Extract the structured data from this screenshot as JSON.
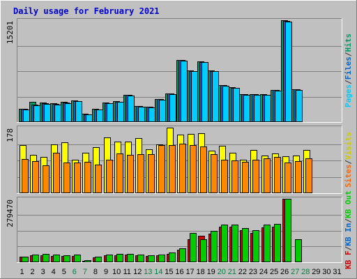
{
  "chart_data": {
    "type": "bar",
    "title": "Daily usage for February 2021",
    "days": [
      "1",
      "2",
      "3",
      "4",
      "5",
      "6",
      "7",
      "8",
      "9",
      "10",
      "11",
      "12",
      "13",
      "14",
      "15",
      "16",
      "17",
      "18",
      "19",
      "20",
      "21",
      "22",
      "23",
      "24",
      "25",
      "26",
      "27",
      "28",
      "29",
      "30",
      "31"
    ],
    "weekend_days": [
      "6",
      "7",
      "13",
      "14",
      "20",
      "21",
      "27",
      "28"
    ],
    "panels": [
      {
        "id": "hits-files-pages",
        "max_label": "15201",
        "max": 15201,
        "side_labels": [
          "Pages",
          "/",
          "Files",
          "/",
          "Hits"
        ],
        "side_colors": [
          "#00ccff",
          "#333333",
          "#0066cc",
          "#333333",
          "#009966"
        ],
        "series": [
          {
            "name": "Hits",
            "color": "#009966",
            "values": [
              2000,
              3000,
              2900,
              2800,
              3000,
              3250,
              1200,
              2000,
              2900,
              3100,
              4100,
              2400,
              2300,
              3450,
              4300,
              9300,
              7700,
              9050,
              7750,
              5550,
              5200,
              4200,
              4200,
              4150,
              4800,
              15200,
              4900,
              0,
              0,
              0,
              0
            ]
          },
          {
            "name": "Files",
            "color": "#0066cc",
            "values": [
              1950,
              2600,
              2800,
              2700,
              2900,
              3150,
              1150,
              1900,
              2850,
              3050,
              4050,
              2350,
              2250,
              3400,
              4250,
              9250,
              7650,
              9000,
              7650,
              5500,
              5150,
              4150,
              4150,
              4100,
              4750,
              15100,
              4850,
              0,
              0,
              0,
              0
            ]
          },
          {
            "name": "Pages",
            "color": "#00ccff",
            "values": [
              1900,
              2550,
              2750,
              2650,
              2850,
              3100,
              1100,
              1850,
              2800,
              3000,
              4000,
              2300,
              2200,
              3350,
              4200,
              9200,
              7600,
              8950,
              7600,
              5450,
              5100,
              4100,
              4100,
              4050,
              4700,
              15000,
              4800,
              0,
              0,
              0,
              0
            ]
          }
        ]
      },
      {
        "id": "visits-sites",
        "max_label": "178",
        "max": 178,
        "side_labels": [
          "Sites",
          "/",
          "Visits"
        ],
        "side_colors": [
          "#ff6600",
          "#333333",
          "#cccc00"
        ],
        "series": [
          {
            "name": "Visits",
            "color": "#ffff00",
            "values": [
              130,
              105,
              98,
              132,
              138,
              90,
              110,
              125,
              152,
              140,
              140,
              150,
              120,
              132,
              178,
              160,
              161,
              162,
              116,
              128,
              110,
              90,
              118,
              102,
              108,
              100,
              103,
              117,
              0,
              0,
              0
            ]
          },
          {
            "name": "Sites",
            "color": "#ff8800",
            "values": [
              92,
              87,
              76,
              110,
              83,
              84,
              86,
              77,
              90,
              108,
              105,
              106,
              106,
              131,
              131,
              135,
              131,
              126,
              106,
              91,
              89,
              86,
              90,
              94,
              98,
              83,
              88,
              95,
              0,
              0,
              0
            ]
          }
        ]
      },
      {
        "id": "kbf-in-out",
        "max_label": "279470",
        "max": 279470,
        "side_labels": [
          "KB F",
          "/",
          "KB In",
          "/",
          "KB Out"
        ],
        "side_colors": [
          "#cc0000",
          "#333333",
          "#0066cc",
          "#333333",
          "#00cc00"
        ],
        "series": [
          {
            "name": "KB F",
            "color": "#cc0000",
            "values": [
              25000,
              30000,
              32000,
              29000,
              29000,
              29000,
              6000,
              20000,
              30000,
              32000,
              35000,
              30000,
              28000,
              30000,
              36000,
              55000,
              100000,
              118000,
              125000,
              156000,
              156000,
              142000,
              130000,
              155000,
              158000,
              279470,
              0,
              0,
              0,
              0,
              0
            ]
          },
          {
            "name": "KB Out",
            "color": "#00cc00",
            "values": [
              25000,
              34000,
              36000,
              33000,
              32000,
              33000,
              8000,
              26000,
              34000,
              36000,
              38000,
              34000,
              32000,
              34000,
              42000,
              60000,
              130000,
              100000,
              138000,
              165000,
              165000,
              150000,
              140000,
              166000,
              168000,
              279470,
              100000,
              0,
              0,
              0,
              0
            ]
          }
        ]
      }
    ]
  }
}
